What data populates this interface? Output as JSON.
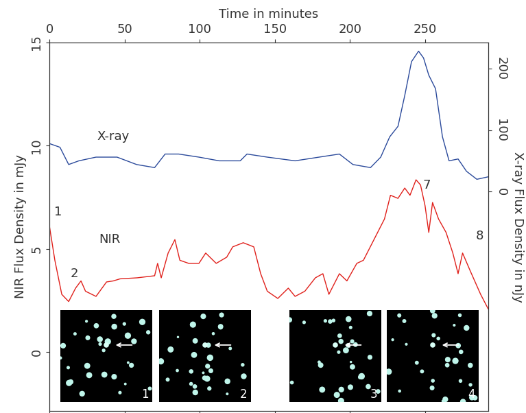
{
  "chart_data": {
    "type": "line",
    "x_label": "Time in minutes",
    "y_label": "NIR Flux Density in mJy",
    "y2_label": "X-ray Flux Density in nJy",
    "xlim": [
      0,
      292
    ],
    "xticks": [
      0,
      50,
      100,
      150,
      200,
      250
    ],
    "ylim": [
      -2.85,
      15
    ],
    "yticks": [
      0,
      5,
      10,
      15
    ],
    "y2lim": [
      -356,
      242
    ],
    "y2ticks": [
      0,
      100,
      200
    ],
    "series": [
      {
        "name": "X-ray",
        "color": "#2b4a9b",
        "axis": "y2",
        "x": [
          0,
          7,
          12.8,
          19.6,
          31,
          45,
          58,
          70,
          77,
          86,
          99.5,
          113,
          127,
          131.5,
          145,
          163.5,
          179.5,
          193,
          202,
          213.7,
          220.5,
          226.5,
          232,
          236.5,
          241,
          245.7,
          249,
          252.5,
          257,
          261.6,
          266,
          272,
          277.6,
          284.5,
          292
        ],
        "values": [
          78,
          72,
          44,
          50,
          56,
          56,
          44,
          39,
          61,
          61,
          56,
          50,
          50,
          61,
          56,
          50,
          56,
          61,
          44,
          39,
          56,
          89,
          106,
          156,
          211,
          228,
          217,
          189,
          167,
          89,
          50,
          53,
          33,
          20,
          24
        ]
      },
      {
        "name": "NIR",
        "color": "#e0201b",
        "x": [
          0,
          3.6,
          8.2,
          12.8,
          17.4,
          21,
          24,
          31,
          38,
          42.5,
          47,
          58.4,
          70,
          72,
          74.4,
          79,
          83.5,
          86.8,
          92.7,
          99.5,
          104,
          111,
          118,
          122,
          129,
          136,
          140.6,
          145,
          152,
          159,
          163.5,
          170,
          177,
          182,
          186,
          193,
          198,
          204.6,
          209,
          216,
          223,
          227,
          232,
          236.5,
          240,
          244,
          247,
          250,
          252.5,
          255,
          259,
          264,
          268.5,
          272,
          275,
          280,
          287,
          292
        ],
        "values": [
          6.1,
          4.45,
          2.8,
          2.45,
          3.1,
          3.45,
          2.95,
          2.7,
          3.4,
          3.45,
          3.55,
          3.6,
          3.7,
          4.3,
          3.6,
          4.8,
          5.45,
          4.45,
          4.3,
          4.3,
          4.8,
          4.3,
          4.6,
          5.1,
          5.3,
          5.1,
          3.8,
          2.95,
          2.6,
          3.1,
          2.7,
          2.95,
          3.6,
          3.8,
          2.8,
          3.8,
          3.45,
          4.3,
          4.45,
          5.45,
          6.45,
          7.6,
          7.45,
          7.95,
          7.6,
          8.35,
          8.1,
          7.1,
          5.8,
          7.25,
          6.45,
          5.8,
          4.8,
          3.8,
          4.8,
          3.95,
          2.8,
          2.1
        ]
      }
    ],
    "annotations": [
      "1",
      "2",
      "7",
      "8"
    ],
    "inset_labels": [
      "1",
      "2",
      "3",
      "4"
    ]
  }
}
